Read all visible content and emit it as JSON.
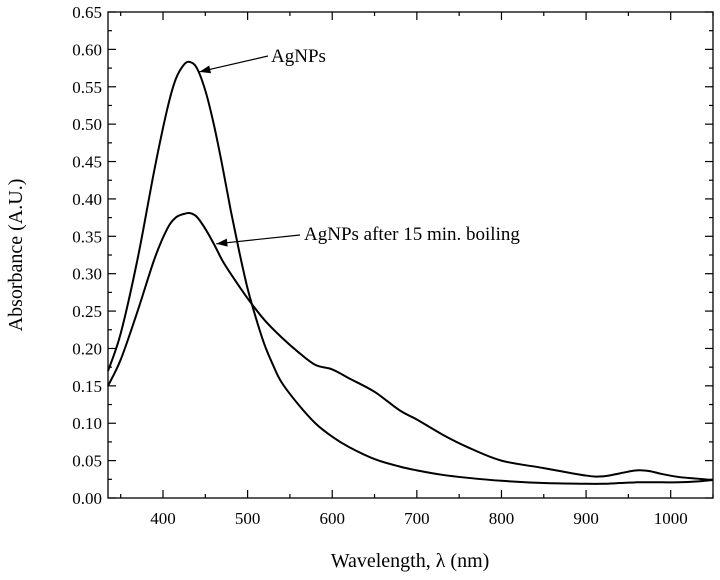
{
  "chart_data": {
    "type": "line",
    "title": "",
    "xlabel": "Wavelength, λ (nm)",
    "ylabel": "Absorbance (A.U.)",
    "xlim": [
      335,
      1050
    ],
    "ylim": [
      0,
      0.65
    ],
    "x_ticks": [
      400,
      500,
      600,
      700,
      800,
      900,
      1000
    ],
    "x_minor_step": 50,
    "y_ticks": [
      0.0,
      0.05,
      0.1,
      0.15,
      0.2,
      0.25,
      0.3,
      0.35,
      0.4,
      0.45,
      0.5,
      0.55,
      0.6,
      0.65
    ],
    "y_minor_step": 0.025,
    "grid": false,
    "series": [
      {
        "name": "AgNPs",
        "x": [
          335,
          350,
          370,
          390,
          405,
          415,
          425,
          432,
          440,
          450,
          460,
          470,
          480,
          490,
          500,
          510,
          520,
          530,
          540,
          560,
          580,
          600,
          620,
          650,
          680,
          700,
          730,
          760,
          800,
          850,
          900,
          920,
          940,
          960,
          975,
          990,
          1010,
          1030,
          1050
        ],
        "y": [
          0.17,
          0.22,
          0.32,
          0.44,
          0.52,
          0.56,
          0.58,
          0.583,
          0.575,
          0.545,
          0.5,
          0.445,
          0.385,
          0.33,
          0.28,
          0.24,
          0.205,
          0.178,
          0.155,
          0.125,
          0.1,
          0.082,
          0.068,
          0.052,
          0.042,
          0.037,
          0.031,
          0.027,
          0.023,
          0.02,
          0.019,
          0.019,
          0.02,
          0.021,
          0.021,
          0.021,
          0.021,
          0.022,
          0.024
        ]
      },
      {
        "name": "AgNPs after 15 min. boiling",
        "x": [
          335,
          350,
          370,
          390,
          405,
          415,
          425,
          432,
          440,
          450,
          460,
          470,
          480,
          500,
          520,
          540,
          560,
          580,
          600,
          620,
          650,
          680,
          700,
          730,
          760,
          800,
          850,
          900,
          920,
          940,
          960,
          975,
          990,
          1010,
          1030,
          1050
        ],
        "y": [
          0.15,
          0.185,
          0.25,
          0.32,
          0.36,
          0.375,
          0.38,
          0.381,
          0.376,
          0.36,
          0.34,
          0.318,
          0.3,
          0.267,
          0.238,
          0.215,
          0.195,
          0.178,
          0.172,
          0.16,
          0.142,
          0.117,
          0.105,
          0.085,
          0.068,
          0.05,
          0.04,
          0.03,
          0.029,
          0.033,
          0.037,
          0.036,
          0.032,
          0.028,
          0.026,
          0.024
        ]
      }
    ],
    "annotations": [
      {
        "text": "AgNPs",
        "target_series": 0,
        "target": [
          443,
          0.57
        ]
      },
      {
        "text": "AgNPs after 15 min. boiling",
        "target_series": 1,
        "target": [
          463,
          0.34
        ]
      }
    ]
  }
}
